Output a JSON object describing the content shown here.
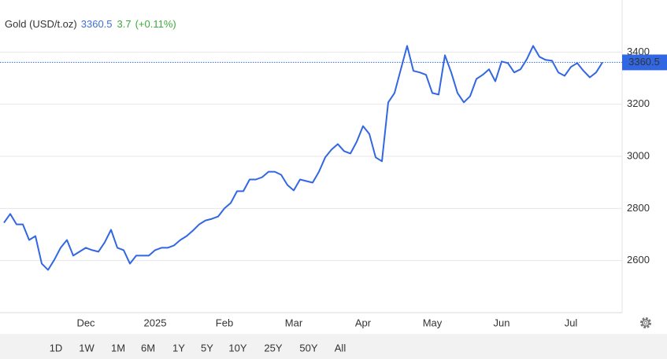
{
  "header": {
    "instrument": "Gold (USD/t.oz)",
    "change": "3.7",
    "change_percent": "(+0.11%)"
  },
  "chart_data": {
    "type": "line",
    "categories": [
      null,
      null,
      null,
      null,
      null,
      null,
      null,
      null,
      null,
      null,
      null,
      null,
      null,
      "Dec",
      null,
      null,
      null,
      null,
      null,
      null,
      null,
      null,
      null,
      null,
      "2025",
      null,
      null,
      null,
      null,
      null,
      null,
      null,
      null,
      null,
      null,
      "Feb",
      null,
      null,
      null,
      null,
      null,
      null,
      null,
      null,
      null,
      null,
      "Mar",
      null,
      null,
      null,
      null,
      null,
      null,
      null,
      null,
      null,
      null,
      "Apr",
      null,
      null,
      null,
      null,
      null,
      null,
      null,
      null,
      null,
      null,
      "May",
      null,
      null,
      null,
      null,
      null,
      null,
      null,
      null,
      null,
      null,
      "Jun",
      null,
      null,
      null,
      null,
      null,
      null,
      null,
      null,
      null,
      null,
      "Jul",
      null,
      null,
      null,
      null,
      null
    ],
    "series": [
      {
        "name": "Gold",
        "color": "#3267e3",
        "values": [
          2745,
          2779,
          2739,
          2739,
          2679,
          2694,
          2588,
          2564,
          2603,
          2649,
          2679,
          2619,
          2634,
          2649,
          2640,
          2634,
          2670,
          2718,
          2649,
          2640,
          2588,
          2619,
          2619,
          2619,
          2640,
          2649,
          2649,
          2658,
          2679,
          2694,
          2715,
          2739,
          2754,
          2760,
          2769,
          2800,
          2821,
          2866,
          2866,
          2911,
          2911,
          2920,
          2941,
          2941,
          2929,
          2890,
          2869,
          2911,
          2905,
          2899,
          2941,
          2996,
          3026,
          3047,
          3020,
          3011,
          3056,
          3116,
          3086,
          2996,
          2981,
          3207,
          3243,
          3334,
          3424,
          3328,
          3322,
          3313,
          3243,
          3237,
          3388,
          3322,
          3243,
          3207,
          3231,
          3297,
          3313,
          3334,
          3288,
          3364,
          3358,
          3322,
          3334,
          3373,
          3424,
          3382,
          3370,
          3367,
          3322,
          3309,
          3343,
          3358,
          3328,
          3303,
          3322,
          3360.5
        ]
      }
    ],
    "ylim": [
      2400,
      3600
    ],
    "yticks": [
      2600,
      2800,
      3000,
      3200,
      3400
    ],
    "grid": true
  },
  "range_buttons": [
    "1D",
    "1W",
    "1M",
    "6M",
    "1Y",
    "5Y",
    "10Y",
    "25Y",
    "50Y",
    "All"
  ],
  "active_range": "1Y"
}
